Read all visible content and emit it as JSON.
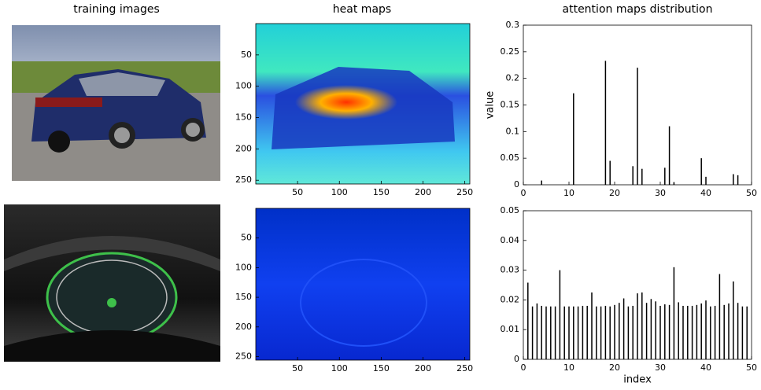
{
  "column_titles": [
    "training images",
    "heat maps",
    "attention maps distribution"
  ],
  "chart_data": [
    {
      "type": "heatmap",
      "xlim": [
        0,
        256
      ],
      "ylim": [
        0,
        256
      ],
      "y_reversed": true,
      "xticks": [
        50,
        100,
        150,
        200,
        250
      ],
      "yticks": [
        50,
        100,
        150,
        200,
        250
      ]
    },
    {
      "type": "stem",
      "ylabel": "value",
      "color": "#000000",
      "xlim": [
        0,
        50
      ],
      "ylim": [
        0,
        0.3
      ],
      "xticks": [
        0,
        10,
        20,
        30,
        40,
        50
      ],
      "yticks": [
        0,
        0.05,
        0.1,
        0.15,
        0.2,
        0.25,
        0.3
      ],
      "x": [
        4,
        11,
        18,
        19,
        24,
        25,
        26,
        31,
        32,
        33,
        39,
        40,
        46,
        47
      ],
      "values": [
        0.008,
        0.172,
        0.233,
        0.045,
        0.035,
        0.22,
        0.03,
        0.032,
        0.11,
        0.005,
        0.05,
        0.015,
        0.02,
        0.018
      ]
    },
    {
      "type": "heatmap",
      "xlim": [
        0,
        256
      ],
      "ylim": [
        0,
        256
      ],
      "y_reversed": true,
      "xticks": [
        50,
        100,
        150,
        200,
        250
      ],
      "yticks": [
        50,
        100,
        150,
        200,
        250
      ]
    },
    {
      "type": "stem",
      "xlabel": "index",
      "color": "#000000",
      "xlim": [
        0,
        50
      ],
      "ylim": [
        0,
        0.05
      ],
      "xticks": [
        0,
        10,
        20,
        30,
        40,
        50
      ],
      "yticks": [
        0,
        0.01,
        0.02,
        0.03,
        0.04,
        0.05
      ],
      "x": [
        1,
        2,
        3,
        4,
        5,
        6,
        7,
        8,
        9,
        10,
        11,
        12,
        13,
        14,
        15,
        16,
        17,
        18,
        19,
        20,
        21,
        22,
        23,
        24,
        25,
        26,
        27,
        28,
        29,
        30,
        31,
        32,
        33,
        34,
        35,
        36,
        37,
        38,
        39,
        40,
        41,
        42,
        43,
        44,
        45,
        46,
        47,
        48,
        49
      ],
      "values": [
        0.0258,
        0.0178,
        0.0188,
        0.018,
        0.0178,
        0.0178,
        0.0178,
        0.03,
        0.0178,
        0.0178,
        0.0178,
        0.0178,
        0.018,
        0.018,
        0.0225,
        0.0178,
        0.0178,
        0.018,
        0.0178,
        0.0183,
        0.019,
        0.0205,
        0.0178,
        0.018,
        0.0222,
        0.0225,
        0.019,
        0.0203,
        0.0195,
        0.018,
        0.0185,
        0.0183,
        0.031,
        0.0192,
        0.018,
        0.018,
        0.018,
        0.0183,
        0.0188,
        0.0198,
        0.0178,
        0.018,
        0.0287,
        0.0183,
        0.0188,
        0.0262,
        0.019,
        0.0178,
        0.0178
      ]
    }
  ]
}
